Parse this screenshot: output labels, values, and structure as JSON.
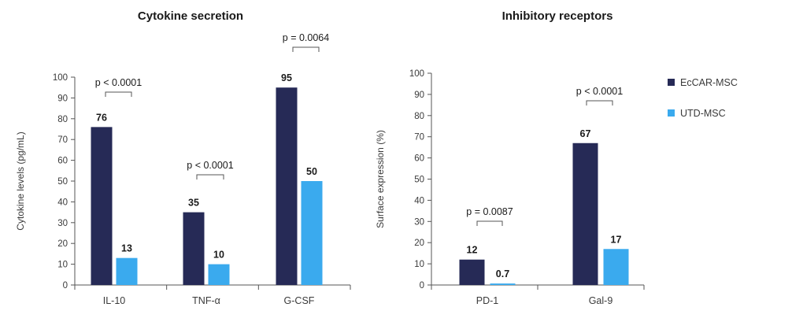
{
  "colors": {
    "eccar": "#262a56",
    "utd": "#3aaaee",
    "axis": "#555555",
    "bracket": "#555555"
  },
  "legend": [
    {
      "name": "EcCAR-MSC",
      "color_key": "eccar"
    },
    {
      "name": "UTD-MSC",
      "color_key": "utd"
    }
  ],
  "chart_data": [
    {
      "type": "bar",
      "title": "Cytokine secretion",
      "ylabel": "Cytokine levels (pg/mL)",
      "xlabel": "",
      "ylim": [
        0,
        100
      ],
      "yticks": [
        0,
        10,
        20,
        30,
        40,
        50,
        60,
        70,
        80,
        90,
        100
      ],
      "categories": [
        "IL-10",
        "TNF-α",
        "G-CSF"
      ],
      "series": [
        {
          "name": "EcCAR-MSC",
          "values": [
            76,
            35,
            95
          ],
          "labels": [
            "76",
            "35",
            "95"
          ]
        },
        {
          "name": "UTD-MSC",
          "values": [
            13,
            10,
            50
          ],
          "labels": [
            "13",
            "10",
            "50"
          ]
        }
      ],
      "annotations": [
        "p < 0.0001",
        "p < 0.0001",
        "p = 0.0064"
      ]
    },
    {
      "type": "bar",
      "title": "Inhibitory receptors",
      "ylabel": "Surface expression (%)",
      "xlabel": "",
      "ylim": [
        0,
        100
      ],
      "yticks": [
        0,
        10,
        20,
        30,
        40,
        50,
        60,
        70,
        80,
        90,
        100
      ],
      "categories": [
        "PD-1",
        "Gal-9"
      ],
      "series": [
        {
          "name": "EcCAR-MSC",
          "values": [
            12,
            67
          ],
          "labels": [
            "12",
            "67"
          ]
        },
        {
          "name": "UTD-MSC",
          "values": [
            0.7,
            17
          ],
          "labels": [
            "0.7",
            "17"
          ]
        }
      ],
      "annotations": [
        "p = 0.0087",
        "p < 0.0001"
      ]
    }
  ]
}
